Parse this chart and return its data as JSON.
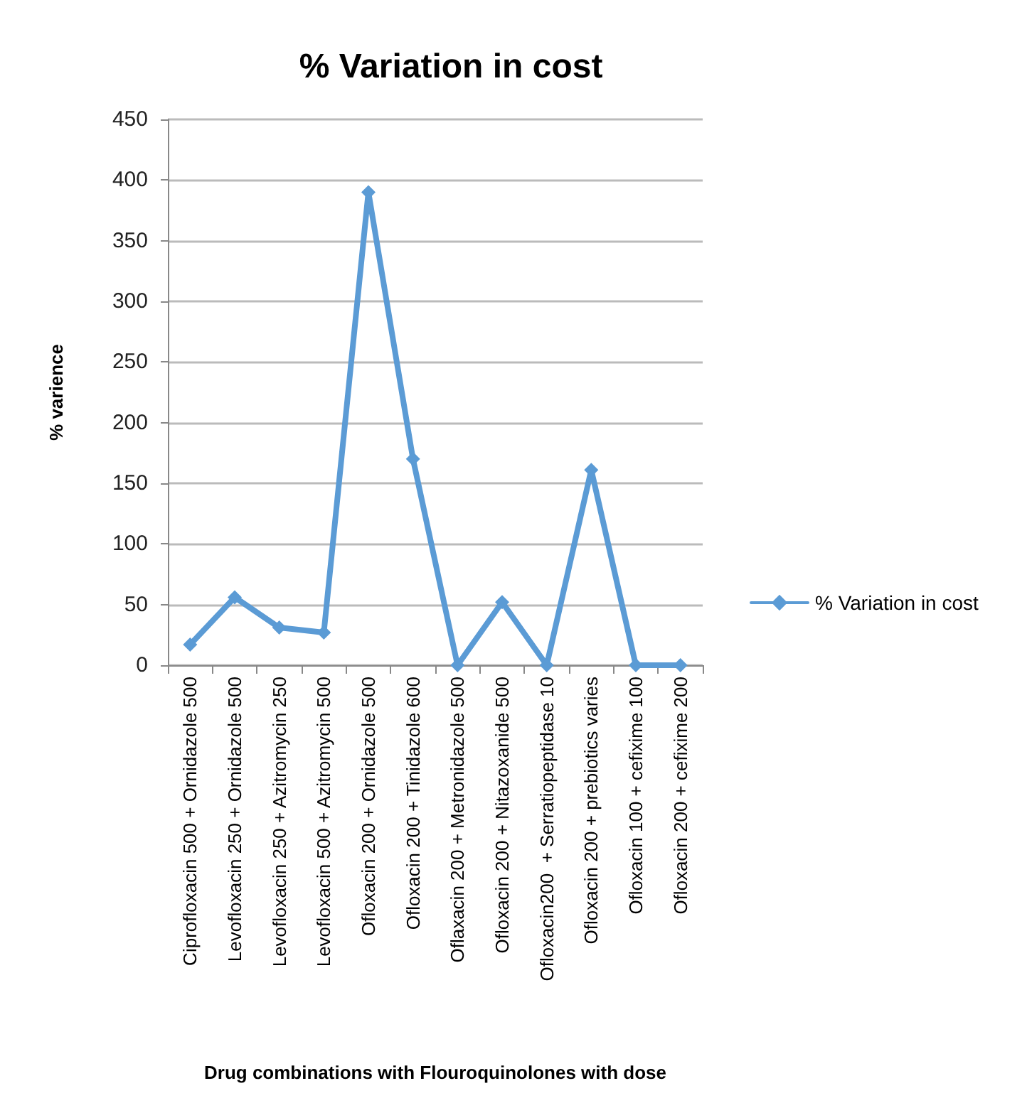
{
  "chart_data": {
    "type": "line",
    "title": "% Variation in cost",
    "xlabel": "Drug combinations with Flouroquinolones with dose",
    "ylabel": "% varience",
    "categories": [
      "Ciprofloxacin 500 + Ornidazole 500",
      "Levofloxacin 250 + Ornidazole 500",
      "Levofloxacin 250 + Azitromycin 250",
      "Levofloxacin 500 + Azitromycin 500",
      "Ofloxacin 200 + Ornidazole 500",
      "Ofloxacin 200 + Tinidazole 600",
      "Oflaxacin 200 + Metronidazole 500",
      "Ofloxacin 200 + Nitazoxanide 500",
      "Ofloxacin200  + Serratiopeptidase 10",
      "Ofloxacin 200 + prebiotics varies",
      "Ofloxacin 100 + cefixime 100",
      "Ofloxacin 200 + cefixime 200"
    ],
    "series": [
      {
        "name": "% Variation in cost",
        "color": "#5b9bd5",
        "values": [
          17,
          56,
          31,
          27,
          390,
          170,
          0,
          52,
          0,
          161,
          0,
          0
        ]
      }
    ],
    "ylim": [
      0,
      450
    ],
    "yticks": [
      0,
      50,
      100,
      150,
      200,
      250,
      300,
      350,
      400,
      450
    ],
    "grid": "y",
    "legend": "right",
    "marker": "diamond",
    "line_style": "solid"
  }
}
